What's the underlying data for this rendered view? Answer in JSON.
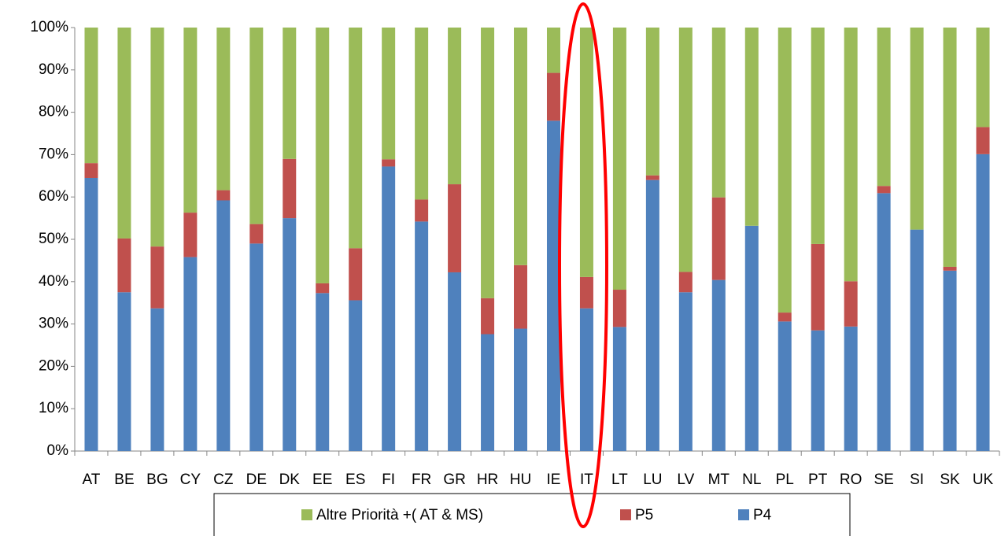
{
  "chart_data": {
    "type": "stacked_bar",
    "categories": [
      "AT",
      "BE",
      "BG",
      "CY",
      "CZ",
      "DE",
      "DK",
      "EE",
      "ES",
      "FI",
      "FR",
      "GR",
      "HR",
      "HU",
      "IE",
      "IT",
      "LT",
      "LU",
      "LV",
      "MT",
      "NL",
      "PL",
      "PT",
      "RO",
      "SE",
      "SI",
      "SK",
      "UK"
    ],
    "series": [
      {
        "name": "P4",
        "color": "#4f81bd",
        "values": [
          64.5,
          37.5,
          33.7,
          45.8,
          59.2,
          49,
          55,
          37.3,
          35.6,
          67.2,
          54.2,
          42.2,
          27.6,
          28.9,
          78,
          33.7,
          29.3,
          64,
          37.5,
          40.4,
          53.2,
          30.6,
          28.5,
          29.4,
          60.9,
          52.3,
          42.6,
          70.1
        ]
      },
      {
        "name": "P5",
        "color": "#c0504d",
        "values": [
          3.5,
          12.7,
          14.6,
          10.5,
          2.4,
          4.6,
          14,
          2.3,
          12.3,
          1.7,
          5.2,
          20.8,
          8.5,
          15,
          11.3,
          7.4,
          8.8,
          1.1,
          4.8,
          19.5,
          0,
          2.1,
          20.4,
          10.7,
          1.7,
          0,
          0.9,
          6.4
        ]
      },
      {
        "name": "Altre Priorità +( AT & MS)",
        "color": "#9bbb59",
        "values": [
          32,
          49.8,
          51.7,
          43.7,
          38.4,
          46.4,
          31,
          60.4,
          52.1,
          31.1,
          40.6,
          37,
          63.9,
          56.1,
          10.7,
          58.9,
          61.9,
          34.9,
          57.7,
          40.1,
          46.8,
          67.3,
          51.1,
          59.9,
          37.4,
          47.7,
          56.5,
          23.5
        ]
      }
    ],
    "ylim": [
      0,
      100
    ],
    "yticks": [
      {
        "value": 0,
        "label": "0%"
      },
      {
        "value": 10,
        "label": "10%"
      },
      {
        "value": 20,
        "label": "20%"
      },
      {
        "value": 30,
        "label": "30%"
      },
      {
        "value": 40,
        "label": "40%"
      },
      {
        "value": 50,
        "label": "50%"
      },
      {
        "value": 60,
        "label": "60%"
      },
      {
        "value": 70,
        "label": "70%"
      },
      {
        "value": 80,
        "label": "80%"
      },
      {
        "value": 90,
        "label": "90%"
      },
      {
        "value": 100,
        "label": "100%"
      }
    ],
    "legend": "bottom"
  }
}
